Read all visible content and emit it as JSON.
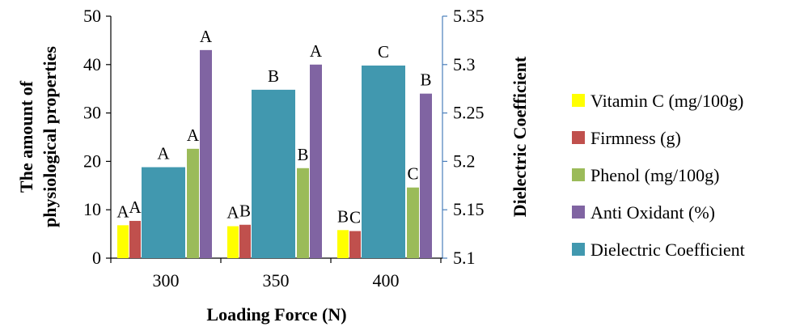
{
  "chart_data": {
    "type": "bar",
    "categories": [
      "300",
      "350",
      "400"
    ],
    "xlabel": "Loading Force (N)",
    "ylabel_left_lines": [
      "The amount of",
      "physiological properties"
    ],
    "ylabel_right": "Dielectric Coefficient",
    "ylim_left": [
      0,
      50
    ],
    "yticks_left": [
      "0",
      "10",
      "20",
      "30",
      "40",
      "50"
    ],
    "ylim_right": [
      5.1,
      5.35
    ],
    "yticks_right": [
      "5.1",
      "5.15",
      "5.2",
      "5.25",
      "5.3",
      "5.35"
    ],
    "grid": false,
    "legend_position": "right",
    "series": [
      {
        "name": "Vitamin C (mg/100g)",
        "axis": "left",
        "color": "#ffff00",
        "values": [
          6.8,
          6.6,
          5.8
        ],
        "labels": [
          "A",
          "A",
          "B"
        ]
      },
      {
        "name": "Firmness (g)",
        "axis": "left",
        "color": "#c0504d",
        "values": [
          7.7,
          6.9,
          5.6
        ],
        "labels": [
          "A",
          "B",
          "C"
        ]
      },
      {
        "name": "Phenol (mg/100g)",
        "axis": "left",
        "color": "#9bbb59",
        "values": [
          22.6,
          18.6,
          14.6
        ],
        "labels": [
          "A",
          "B",
          "C"
        ]
      },
      {
        "name": "Anti Oxidant (%)",
        "axis": "left",
        "color": "#8064a2",
        "values": [
          43.0,
          40.0,
          34.0
        ],
        "labels": [
          "A",
          "A",
          "B"
        ]
      },
      {
        "name": "Dielectric Coefficient",
        "axis": "right",
        "color": "#4198af",
        "values": [
          5.194,
          5.274,
          5.299
        ],
        "labels": [
          "A",
          "B",
          "C"
        ]
      }
    ]
  }
}
